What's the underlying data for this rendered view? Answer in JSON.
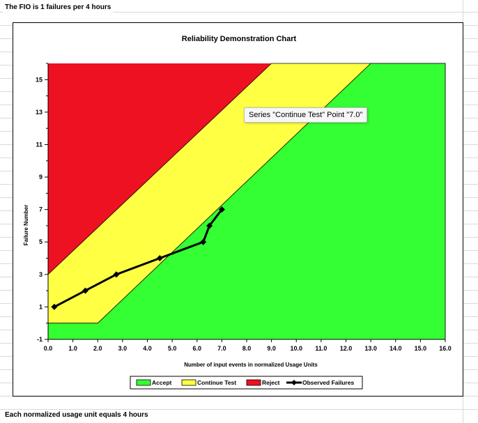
{
  "sheet": {
    "top_cell": "The FIO is 1 failures per 4 hours",
    "bottom_cell": "Each normalized usage unit equals 4 hours"
  },
  "tooltip": {
    "text": "Series \"Continue Test\" Point \"7.0\""
  },
  "colors": {
    "accept": "#33ff33",
    "continue": "#ffff44",
    "reject": "#ee1122",
    "observed": "#000000"
  },
  "chart_data": {
    "type": "area",
    "title": "Reliability Demonstration Chart",
    "xlabel": "Number of input events in normalized Usage Units",
    "ylabel": "Failure Number",
    "xlim": [
      0,
      16
    ],
    "ylim": [
      -1,
      16
    ],
    "x_ticks": [
      "0.0",
      "1.0",
      "2.0",
      "3.0",
      "4.0",
      "5.0",
      "6.0",
      "7.0",
      "8.0",
      "9.0",
      "10.0",
      "11.0",
      "12.0",
      "13.0",
      "14.0",
      "15.0",
      "16.0"
    ],
    "y_ticks": [
      -1,
      1,
      3,
      5,
      7,
      9,
      11,
      13,
      15
    ],
    "grid": false,
    "legend_position": "bottom",
    "regions": [
      {
        "name": "Accept",
        "color": "#33ff33",
        "boundary": [
          [
            0,
            0
          ],
          [
            2.0,
            0
          ],
          [
            13.0,
            16
          ]
        ]
      },
      {
        "name": "Continue Test",
        "color": "#ffff44",
        "boundary": [
          [
            0,
            3
          ],
          [
            9.0,
            16
          ]
        ]
      },
      {
        "name": "Reject",
        "color": "#ee1122"
      }
    ],
    "series": [
      {
        "name": "Observed Failures",
        "x": [
          0.25,
          1.5,
          2.75,
          4.5,
          6.25,
          6.5,
          7.0
        ],
        "y": [
          1,
          2,
          3,
          4,
          5,
          6,
          7
        ]
      }
    ],
    "legend": [
      "Accept",
      "Continue Test",
      "Reject",
      "Observed Failures"
    ]
  }
}
